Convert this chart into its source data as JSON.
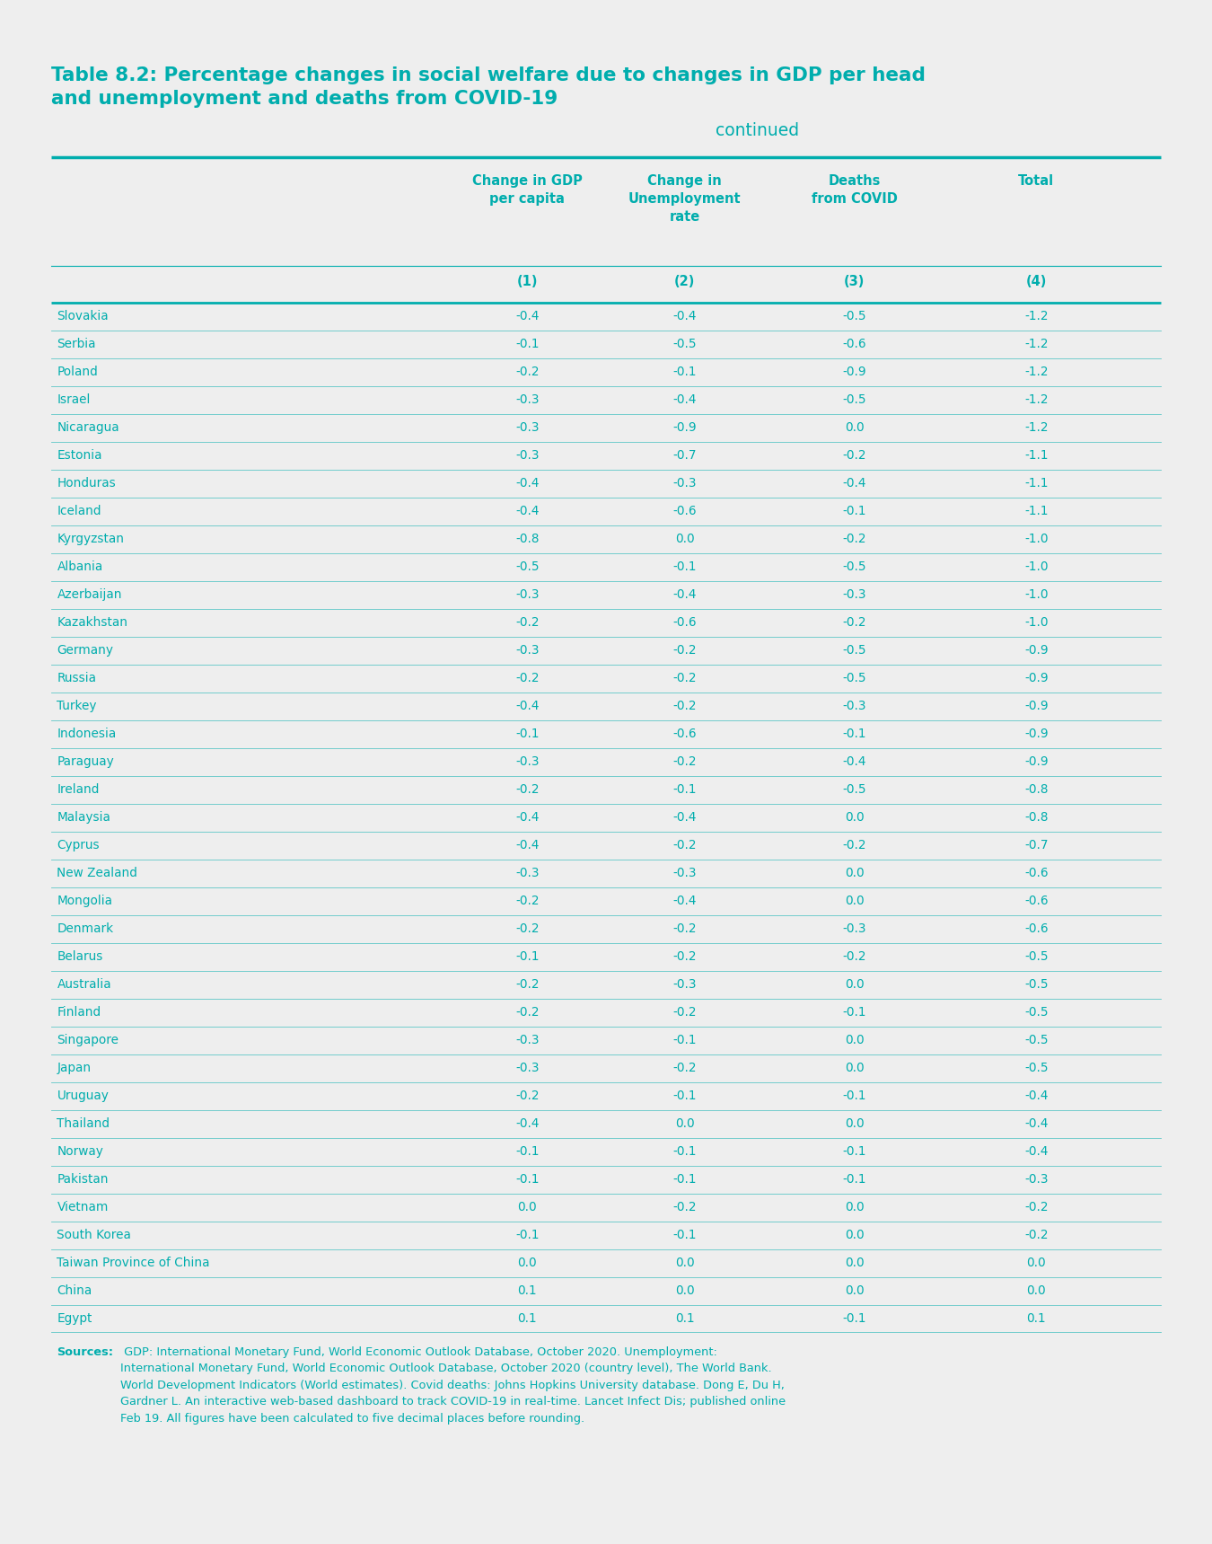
{
  "title_bold": "Table 8.2: Percentage changes in social welfare due to changes in GDP per head\nand unemployment and deaths from COVID-19",
  "title_continued": "continued",
  "background_color": "#eeeeee",
  "teal_color": "#00ADAD",
  "col_headers": [
    "Change in GDP\nper capita",
    "Change in\nUnemployment\nrate",
    "Deaths\nfrom COVID",
    "Total"
  ],
  "col_subheaders": [
    "(1)",
    "(2)",
    "(3)",
    "(4)"
  ],
  "rows": [
    [
      "Slovakia",
      "-0.4",
      "-0.4",
      "-0.5",
      "-1.2"
    ],
    [
      "Serbia",
      "-0.1",
      "-0.5",
      "-0.6",
      "-1.2"
    ],
    [
      "Poland",
      "-0.2",
      "-0.1",
      "-0.9",
      "-1.2"
    ],
    [
      "Israel",
      "-0.3",
      "-0.4",
      "-0.5",
      "-1.2"
    ],
    [
      "Nicaragua",
      "-0.3",
      "-0.9",
      "0.0",
      "-1.2"
    ],
    [
      "Estonia",
      "-0.3",
      "-0.7",
      "-0.2",
      "-1.1"
    ],
    [
      "Honduras",
      "-0.4",
      "-0.3",
      "-0.4",
      "-1.1"
    ],
    [
      "Iceland",
      "-0.4",
      "-0.6",
      "-0.1",
      "-1.1"
    ],
    [
      "Kyrgyzstan",
      "-0.8",
      "0.0",
      "-0.2",
      "-1.0"
    ],
    [
      "Albania",
      "-0.5",
      "-0.1",
      "-0.5",
      "-1.0"
    ],
    [
      "Azerbaijan",
      "-0.3",
      "-0.4",
      "-0.3",
      "-1.0"
    ],
    [
      "Kazakhstan",
      "-0.2",
      "-0.6",
      "-0.2",
      "-1.0"
    ],
    [
      "Germany",
      "-0.3",
      "-0.2",
      "-0.5",
      "-0.9"
    ],
    [
      "Russia",
      "-0.2",
      "-0.2",
      "-0.5",
      "-0.9"
    ],
    [
      "Turkey",
      "-0.4",
      "-0.2",
      "-0.3",
      "-0.9"
    ],
    [
      "Indonesia",
      "-0.1",
      "-0.6",
      "-0.1",
      "-0.9"
    ],
    [
      "Paraguay",
      "-0.3",
      "-0.2",
      "-0.4",
      "-0.9"
    ],
    [
      "Ireland",
      "-0.2",
      "-0.1",
      "-0.5",
      "-0.8"
    ],
    [
      "Malaysia",
      "-0.4",
      "-0.4",
      "0.0",
      "-0.8"
    ],
    [
      "Cyprus",
      "-0.4",
      "-0.2",
      "-0.2",
      "-0.7"
    ],
    [
      "New Zealand",
      "-0.3",
      "-0.3",
      "0.0",
      "-0.6"
    ],
    [
      "Mongolia",
      "-0.2",
      "-0.4",
      "0.0",
      "-0.6"
    ],
    [
      "Denmark",
      "-0.2",
      "-0.2",
      "-0.3",
      "-0.6"
    ],
    [
      "Belarus",
      "-0.1",
      "-0.2",
      "-0.2",
      "-0.5"
    ],
    [
      "Australia",
      "-0.2",
      "-0.3",
      "0.0",
      "-0.5"
    ],
    [
      "Finland",
      "-0.2",
      "-0.2",
      "-0.1",
      "-0.5"
    ],
    [
      "Singapore",
      "-0.3",
      "-0.1",
      "0.0",
      "-0.5"
    ],
    [
      "Japan",
      "-0.3",
      "-0.2",
      "0.0",
      "-0.5"
    ],
    [
      "Uruguay",
      "-0.2",
      "-0.1",
      "-0.1",
      "-0.4"
    ],
    [
      "Thailand",
      "-0.4",
      "0.0",
      "0.0",
      "-0.4"
    ],
    [
      "Norway",
      "-0.1",
      "-0.1",
      "-0.1",
      "-0.4"
    ],
    [
      "Pakistan",
      "-0.1",
      "-0.1",
      "-0.1",
      "-0.3"
    ],
    [
      "Vietnam",
      "0.0",
      "-0.2",
      "0.0",
      "-0.2"
    ],
    [
      "South Korea",
      "-0.1",
      "-0.1",
      "0.0",
      "-0.2"
    ],
    [
      "Taiwan Province of China",
      "0.0",
      "0.0",
      "0.0",
      "0.0"
    ],
    [
      "China",
      "0.1",
      "0.0",
      "0.0",
      "0.0"
    ],
    [
      "Egypt",
      "0.1",
      "0.1",
      "-0.1",
      "0.1"
    ]
  ],
  "sources_bold": "Sources:",
  "sources_text": " GDP: International Monetary Fund, World Economic Outlook Database, October 2020. Unemployment:\nInternational Monetary Fund, World Economic Outlook Database, October 2020 (country level), The World Bank.\nWorld Development Indicators (World estimates). Covid deaths: Johns Hopkins University database. Dong E, Du H,\nGardner L. An interactive web-based dashboard to track COVID-19 in real-time. Lancet Infect Dis; published online\nFeb 19. All figures have been calculated to five decimal places before rounding."
}
